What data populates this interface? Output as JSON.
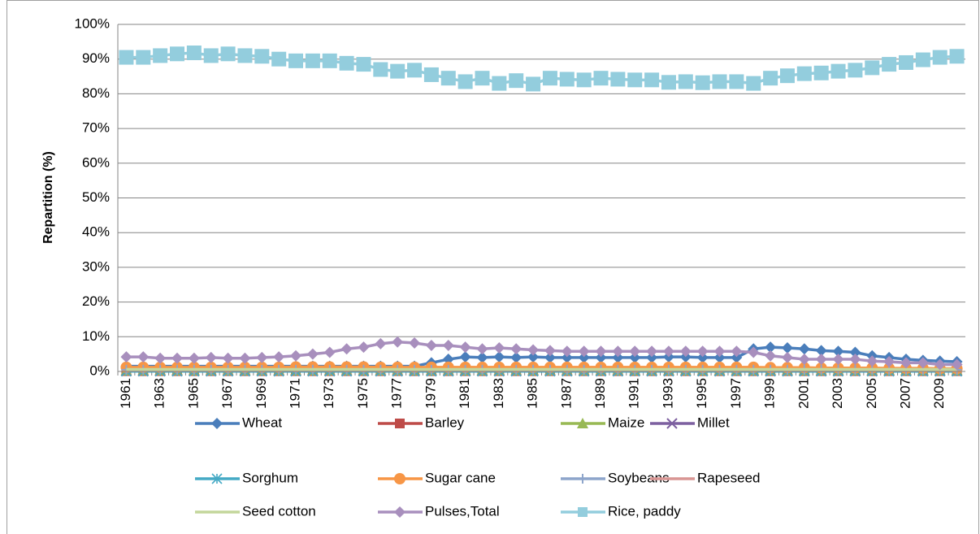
{
  "chart_data": {
    "type": "line",
    "y_label": "Repartition (%)",
    "categories": [
      1961,
      null,
      1963,
      null,
      1965,
      null,
      1967,
      null,
      1969,
      null,
      1971,
      null,
      1973,
      null,
      1975,
      null,
      1977,
      null,
      1979,
      null,
      1981,
      null,
      1983,
      null,
      1985,
      null,
      1987,
      null,
      1989,
      null,
      1991,
      null,
      1993,
      null,
      1995,
      null,
      1997,
      null,
      1999,
      null,
      2001,
      null,
      2003,
      null,
      2005,
      null,
      2007,
      null,
      2009,
      null
    ],
    "ylim": [
      0,
      100
    ],
    "yticks": [
      {
        "value": 0,
        "label": "0%"
      },
      {
        "value": 10,
        "label": "10%"
      },
      {
        "value": 20,
        "label": "20%"
      },
      {
        "value": 30,
        "label": "30%"
      },
      {
        "value": 40,
        "label": "40%"
      },
      {
        "value": 50,
        "label": "50%"
      },
      {
        "value": 60,
        "label": "60%"
      },
      {
        "value": 70,
        "label": "70%"
      },
      {
        "value": 80,
        "label": "80%"
      },
      {
        "value": 90,
        "label": "90%"
      },
      {
        "value": 100,
        "label": "100%"
      }
    ],
    "grid": true,
    "legend": "bottom",
    "series": [
      {
        "name": "Wheat",
        "color": "#4a7ebb",
        "marker": "diamond",
        "values": [
          1.5,
          1.5,
          1.5,
          1.5,
          1.5,
          1.5,
          1.5,
          1.5,
          1.5,
          1.5,
          1.5,
          1.5,
          1.5,
          1.5,
          1.5,
          1.5,
          1.5,
          1.5,
          2.5,
          3.5,
          4.2,
          4.0,
          4.2,
          4.0,
          4.2,
          4.0,
          4.0,
          4.0,
          4.0,
          4.0,
          4.0,
          4.0,
          4.2,
          4.2,
          4.0,
          4.0,
          4.0,
          6.5,
          7.0,
          6.8,
          6.5,
          6.0,
          5.8,
          5.5,
          4.5,
          4.0,
          3.5,
          3.2,
          3.0,
          2.8
        ]
      },
      {
        "name": "Barley",
        "color": "#be4b48",
        "marker": "square",
        "values": [
          0.1,
          0.1,
          0.1,
          0.1,
          0.1,
          0.1,
          0.1,
          0.1,
          0.1,
          0.1,
          0.1,
          0.1,
          0.1,
          0.1,
          0.1,
          0.1,
          0.1,
          0.1,
          0.1,
          0.1,
          0.1,
          0.1,
          0.1,
          0.1,
          0.1,
          0.1,
          0.1,
          0.1,
          0.1,
          0.1,
          0.1,
          0.1,
          0.1,
          0.1,
          0.1,
          0.1,
          0.1,
          0.1,
          0.1,
          0.1,
          0.1,
          0.1,
          0.1,
          0.1,
          0.1,
          0.1,
          0.1,
          0.1,
          0.1,
          0.1
        ]
      },
      {
        "name": "Maize",
        "color": "#98b954",
        "marker": "triangle",
        "values": [
          0.3,
          0.3,
          0.3,
          0.3,
          0.3,
          0.3,
          0.3,
          0.3,
          0.3,
          0.3,
          0.3,
          0.3,
          0.3,
          0.3,
          0.3,
          0.3,
          0.3,
          0.3,
          0.3,
          0.3,
          0.3,
          0.3,
          0.3,
          0.3,
          0.3,
          0.3,
          0.3,
          0.3,
          0.3,
          0.3,
          0.3,
          0.3,
          0.3,
          0.3,
          0.3,
          0.3,
          0.3,
          0.3,
          0.3,
          0.3,
          0.3,
          0.3,
          0.3,
          0.3,
          0.3,
          0.3,
          0.3,
          0.3,
          0.3,
          0.3
        ]
      },
      {
        "name": "Millet",
        "color": "#7d60a0",
        "marker": "x",
        "values": [
          0.1,
          0.1,
          0.1,
          0.1,
          0.1,
          0.1,
          0.1,
          0.1,
          0.1,
          0.1,
          0.1,
          0.1,
          0.1,
          0.1,
          0.1,
          0.1,
          0.1,
          0.1,
          0.1,
          0.1,
          0.1,
          0.1,
          0.1,
          0.1,
          0.1,
          0.1,
          0.1,
          0.1,
          0.1,
          0.1,
          0.1,
          0.1,
          0.1,
          0.1,
          0.1,
          0.1,
          0.1,
          0.1,
          0.1,
          0.1,
          0.1,
          0.1,
          0.1,
          0.1,
          0.1,
          0.1,
          0.1,
          0.1,
          0.1,
          0.1
        ]
      },
      {
        "name": "Sorghum",
        "color": "#46aac5",
        "marker": "asterisk",
        "values": [
          0.05,
          0.05,
          0.05,
          0.05,
          0.05,
          0.05,
          0.05,
          0.05,
          0.05,
          0.05,
          0.05,
          0.05,
          0.05,
          0.05,
          0.05,
          0.05,
          0.05,
          0.05,
          0.05,
          0.05,
          0.05,
          0.05,
          0.05,
          0.05,
          0.05,
          0.05,
          0.05,
          0.05,
          0.05,
          0.05,
          0.05,
          0.05,
          0.05,
          0.05,
          0.05,
          0.05,
          0.05,
          0.05,
          0.05,
          0.05,
          0.05,
          0.05,
          0.05,
          0.05,
          0.05,
          0.05,
          0.05,
          0.05,
          0.05,
          0.05
        ]
      },
      {
        "name": "Sugar cane",
        "color": "#f79646",
        "marker": "circle",
        "values": [
          1.2,
          1.2,
          1.2,
          1.2,
          1.2,
          1.2,
          1.2,
          1.2,
          1.2,
          1.2,
          1.3,
          1.3,
          1.3,
          1.3,
          1.3,
          1.2,
          1.2,
          1.2,
          1.2,
          1.2,
          1.2,
          1.2,
          1.2,
          1.2,
          1.2,
          1.2,
          1.2,
          1.2,
          1.2,
          1.2,
          1.2,
          1.2,
          1.2,
          1.2,
          1.2,
          1.2,
          1.2,
          1.2,
          1.1,
          1.1,
          1.1,
          1.0,
          1.0,
          1.0,
          1.0,
          0.9,
          0.9,
          0.9,
          0.8,
          0.8
        ]
      },
      {
        "name": "Soybeans",
        "color": "#8ea5cb",
        "marker": "plus",
        "values": [
          0.5,
          0.5,
          0.5,
          0.5,
          0.5,
          0.5,
          0.5,
          0.5,
          0.5,
          0.5,
          0.5,
          0.5,
          0.5,
          0.5,
          0.5,
          0.5,
          0.5,
          0.5,
          0.5,
          0.5,
          0.5,
          0.5,
          0.5,
          0.5,
          0.5,
          0.5,
          0.5,
          0.5,
          0.5,
          0.5,
          0.5,
          0.5,
          0.5,
          0.5,
          0.5,
          0.5,
          0.5,
          0.5,
          0.5,
          0.5,
          0.5,
          0.5,
          0.5,
          0.5,
          0.5,
          0.5,
          0.5,
          0.5,
          0.5,
          0.5
        ]
      },
      {
        "name": "Rapeseed",
        "color": "#d99694",
        "marker": "none",
        "values": [
          0.4,
          0.4,
          0.4,
          0.4,
          0.4,
          0.4,
          0.4,
          0.4,
          0.4,
          0.4,
          0.4,
          0.4,
          0.4,
          0.4,
          0.4,
          0.4,
          0.4,
          0.4,
          0.4,
          0.4,
          0.4,
          0.4,
          0.4,
          0.4,
          0.4,
          0.4,
          0.4,
          0.4,
          0.4,
          0.4,
          0.4,
          0.4,
          0.4,
          0.4,
          0.4,
          0.4,
          0.4,
          0.4,
          0.4,
          0.4,
          0.4,
          0.4,
          0.4,
          0.4,
          0.4,
          0.4,
          0.4,
          0.4,
          0.4,
          0.4
        ]
      },
      {
        "name": "Seed cotton",
        "color": "#c3d69b",
        "marker": "none",
        "values": [
          0.6,
          0.6,
          0.6,
          0.6,
          0.6,
          0.6,
          0.6,
          0.6,
          0.6,
          0.6,
          0.6,
          0.6,
          0.6,
          0.6,
          0.6,
          0.6,
          0.6,
          0.6,
          0.6,
          0.6,
          0.6,
          0.6,
          0.6,
          0.6,
          0.6,
          0.6,
          0.6,
          0.6,
          0.6,
          0.6,
          0.6,
          0.6,
          0.6,
          0.6,
          0.6,
          0.6,
          0.6,
          0.6,
          0.6,
          0.6,
          0.6,
          0.6,
          0.6,
          0.6,
          0.6,
          0.6,
          0.6,
          0.6,
          0.6,
          0.6
        ]
      },
      {
        "name": "Pulses,Total",
        "color": "#a88fbd",
        "marker": "diamond",
        "values": [
          4.2,
          4.2,
          3.8,
          3.8,
          3.8,
          4.0,
          3.8,
          3.8,
          4.0,
          4.2,
          4.5,
          5.0,
          5.5,
          6.5,
          7.0,
          8.0,
          8.5,
          8.2,
          7.5,
          7.5,
          7.0,
          6.5,
          6.8,
          6.5,
          6.2,
          6.0,
          5.8,
          5.8,
          5.8,
          5.8,
          5.8,
          5.8,
          5.8,
          5.8,
          5.8,
          5.8,
          5.8,
          5.5,
          4.5,
          4.0,
          3.5,
          3.5,
          3.5,
          3.5,
          3.0,
          2.8,
          2.5,
          2.5,
          2.0,
          2.0
        ]
      },
      {
        "name": "Rice, paddy",
        "color": "#93cddd",
        "marker": "bigsquare",
        "values": [
          90.5,
          90.5,
          91,
          91.5,
          91.8,
          91,
          91.5,
          91,
          90.8,
          90,
          89.5,
          89.5,
          89.5,
          88.8,
          88.5,
          87,
          86.5,
          86.8,
          85.5,
          84.5,
          83.5,
          84.5,
          83,
          83.8,
          82.8,
          84.5,
          84.2,
          84,
          84.5,
          84.2,
          84,
          84,
          83.3,
          83.5,
          83.2,
          83.5,
          83.5,
          83,
          84.5,
          85.2,
          85.8,
          86,
          86.5,
          86.8,
          87.5,
          88.5,
          89,
          89.8,
          90.5,
          90.8
        ]
      }
    ]
  }
}
